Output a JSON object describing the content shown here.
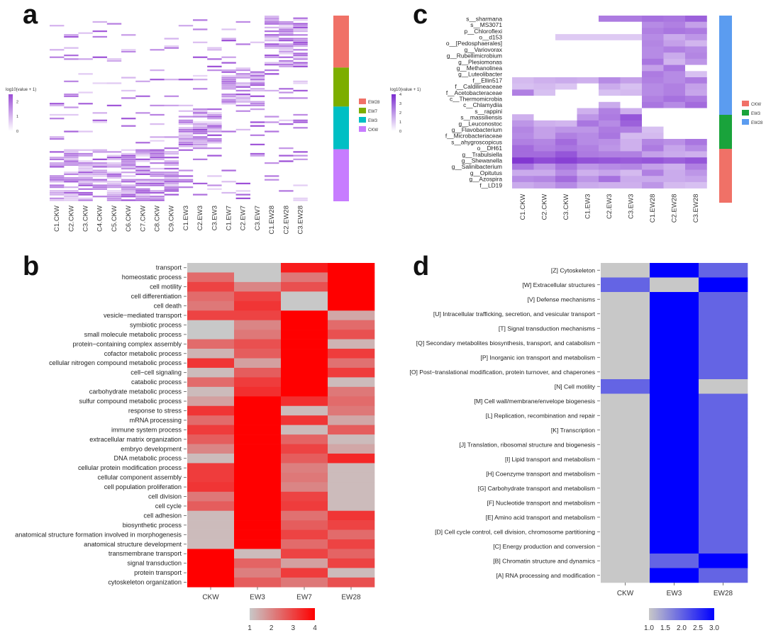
{
  "panels": {
    "a": {
      "label": "a",
      "legend_title": "log10(value + 1)",
      "legend_ticks": [
        "2",
        "1",
        "0"
      ],
      "group_legend": [
        "EW28",
        "EW7",
        "EW3",
        "CKW"
      ],
      "group_colors": {
        "EW28": "#f07167",
        "EW7": "#7cae00",
        "EW3": "#00bfc4",
        "CKW": "#c77cff"
      },
      "columns": [
        "C1.CKW",
        "C2.CKW",
        "C3.CKW",
        "C4.CKW",
        "C5.CKW",
        "C6.CKW",
        "C7.CKW",
        "C8.CKW",
        "C9.CKW",
        "C1.EW3",
        "C2.EW3",
        "C3.EW3",
        "C1.EW7",
        "C2.EW7",
        "C3.EW7",
        "C1.EW28",
        "C2.EW28",
        "C3.EW28"
      ]
    },
    "b": {
      "label": "b",
      "columns": [
        "CKW",
        "EW3",
        "EW7",
        "EW28"
      ],
      "legend_ticks": [
        "1",
        "2",
        "3",
        "4"
      ],
      "rows": [
        "transport",
        "homeostatic process",
        "cell motility",
        "cell differentiation",
        "cell death",
        "vesicle−mediated transport",
        "symbiotic process",
        "small molecule metabolic process",
        "protein−containing complex assembly",
        "cofactor metabolic process",
        "cellular nitrogen compound metabolic process",
        "cell−cell signaling",
        "catabolic process",
        "carbohydrate metabolic process",
        "sulfur compound metabolic process",
        "response to stress",
        "mRNA processing",
        "immune system process",
        "extracellular matrix organization",
        "embryo development",
        "DNA metabolic process",
        "cellular protein modification process",
        "cellular component assembly",
        "cell population proliferation",
        "cell division",
        "cell cycle",
        "cell adhesion",
        "biosynthetic process",
        "anatomical structure formation involved in morphogenesis",
        "anatomical structure development",
        "transmembrane transport",
        "signal transduction",
        "protein transport",
        "cytoskeleton organization"
      ]
    },
    "c": {
      "label": "c",
      "legend_title": "log10(value + 1)",
      "legend_ticks": [
        "4",
        "3",
        "2",
        "1",
        "0"
      ],
      "group_legend": [
        "CKW",
        "EW3",
        "EW28"
      ],
      "group_colors": {
        "CKW": "#f07167",
        "EW3": "#19a33b",
        "EW28": "#5b9cf0"
      },
      "columns": [
        "C1.CKW",
        "C2.CKW",
        "C3.CKW",
        "C1.EW3",
        "C2.EW3",
        "C3.EW3",
        "C1.EW28",
        "C2.EW28",
        "C3.EW28"
      ],
      "rows": [
        "s__sharmana",
        "s__MS3071",
        "p__Chloroflexi",
        "o__d153",
        "o__[Pedosphaerales]",
        "g__Variovorax",
        "g__Rubellimicrobium",
        "g__Plesiomonas",
        "g__Methanolinea",
        "g__Luteolibacter",
        "f__Ellin517",
        "f__Caldilineaceae",
        "f__Acetobacteraceae",
        "c__Thermomicrobia",
        "c__Chlamydiia",
        "s__rappini",
        "s__massiliensis",
        "g__Leuconostoc",
        "g__Flavobacterium",
        "f__Microbacteriaceae",
        "s__ahygroscopicus",
        "o__DH61",
        "g__Trabulsiella",
        "g__Shewanella",
        "g__Salinibacterium",
        "g__Opitutus",
        "g__Azospira",
        "f__LD19"
      ]
    },
    "d": {
      "label": "d",
      "columns": [
        "CKW",
        "EW3",
        "EW28"
      ],
      "legend_ticks": [
        "1.0",
        "1.5",
        "2.0",
        "2.5",
        "3.0"
      ],
      "rows": [
        "[Z] Cytoskeleton",
        "[W] Extracellular structures",
        "[V] Defense mechanisms",
        "[U] Intracellular trafficking, secretion, and vesicular transport",
        "[T] Signal transduction mechanisms",
        "[Q] Secondary metabolites biosynthesis, transport, and catabolism",
        "[P] Inorganic ion transport and metabolism",
        "[O] Post−translational modification, protein turnover, and chaperones",
        "[N] Cell motility",
        "[M] Cell wall/membrane/envelope biogenesis",
        "[L] Replication, recombination and repair",
        "[K] Transcription",
        "[J] Translation, ribosomal structure and biogenesis",
        "[I] Lipid transport and metabolism",
        "[H] Coenzyme transport and metabolism",
        "[G] Carbohydrate transport and metabolism",
        "[F] Nucleotide transport and metabolism",
        "[E] Amino acid transport and metabolism",
        "[D] Cell cycle control, cell division, chromosome partitioning",
        "[C] Energy production and conversion",
        "[B] Chromatin structure and dynamics",
        "[A] RNA processing and modification"
      ]
    }
  },
  "chart_data": [
    {
      "type": "heatmap",
      "panel": "a",
      "columns": [
        "C1.CKW",
        "C2.CKW",
        "C3.CKW",
        "C4.CKW",
        "C5.CKW",
        "C6.CKW",
        "C7.CKW",
        "C8.CKW",
        "C9.CKW",
        "C1.EW3",
        "C2.EW3",
        "C3.EW3",
        "C1.EW7",
        "C2.EW7",
        "C3.EW7",
        "C1.EW28",
        "C2.EW28",
        "C3.EW28"
      ],
      "row_groups": [
        {
          "group": "EW28",
          "row_count": 28,
          "present_in": [
            "C1.EW28",
            "C2.EW28",
            "C3.EW28"
          ]
        },
        {
          "group": "EW7",
          "row_count": 21,
          "present_in": [
            "C1.EW7",
            "C2.EW7",
            "C3.EW7"
          ]
        },
        {
          "group": "EW3",
          "row_count": 23,
          "present_in": [
            "C1.EW3",
            "C2.EW3",
            "C3.EW3"
          ]
        },
        {
          "group": "CKW",
          "row_count": 28,
          "present_in": [
            "C1.CKW",
            "C2.CKW",
            "C3.CKW",
            "C4.CKW",
            "C5.CKW",
            "C6.CKW",
            "C7.CKW",
            "C8.CKW",
            "C9.CKW"
          ]
        }
      ],
      "color_scale": {
        "low": "#ffffff",
        "high": "#9b4dd6",
        "range": [
          0,
          2.5
        ]
      },
      "note_values": "sparse presence pattern; values approximate"
    },
    {
      "type": "heatmap",
      "panel": "b",
      "columns": [
        "CKW",
        "EW3",
        "EW7",
        "EW28"
      ],
      "rows": [
        "transport",
        "homeostatic process",
        "cell motility",
        "cell differentiation",
        "cell death",
        "vesicle−mediated transport",
        "symbiotic process",
        "small molecule metabolic process",
        "protein−containing complex assembly",
        "cofactor metabolic process",
        "cellular nitrogen compound metabolic process",
        "cell−cell signaling",
        "catabolic process",
        "carbohydrate metabolic process",
        "sulfur compound metabolic process",
        "response to stress",
        "mRNA processing",
        "immune system process",
        "extracellular matrix organization",
        "embryo development",
        "DNA metabolic process",
        "cellular protein modification process",
        "cellular component assembly",
        "cell population proliferation",
        "cell division",
        "cell cycle",
        "cell adhesion",
        "biosynthetic process",
        "anatomical structure formation involved in morphogenesis",
        "anatomical structure development",
        "transmembrane transport",
        "signal transduction",
        "protein transport",
        "cytoskeleton organization"
      ],
      "values": [
        [
          1,
          1,
          3.6,
          4
        ],
        [
          2.4,
          1,
          2.2,
          4
        ],
        [
          3,
          2,
          2.8,
          4
        ],
        [
          2.4,
          3,
          1,
          4
        ],
        [
          2.2,
          3.2,
          1,
          4
        ],
        [
          3,
          3,
          4,
          1.5
        ],
        [
          1,
          2,
          4,
          2.4
        ],
        [
          1,
          2.2,
          4,
          2.8
        ],
        [
          2.4,
          2.8,
          4,
          1.3
        ],
        [
          1.3,
          2.6,
          4,
          3.1
        ],
        [
          3.2,
          1.6,
          4,
          2.3
        ],
        [
          1.2,
          2.6,
          4,
          3.1
        ],
        [
          2.4,
          3.1,
          4,
          1.2
        ],
        [
          1.2,
          3.3,
          4,
          2.2
        ],
        [
          1.6,
          4,
          3.3,
          2.4
        ],
        [
          3.2,
          4,
          1.2,
          2.2
        ],
        [
          2.4,
          4,
          3.2,
          1.5
        ],
        [
          3.1,
          4,
          1.2,
          2.6
        ],
        [
          2.6,
          4,
          2.5,
          1.2
        ],
        [
          2,
          4,
          3,
          1.5
        ],
        [
          1.2,
          4,
          2.6,
          3.4
        ],
        [
          3.1,
          4,
          2.1,
          1.2
        ],
        [
          3.1,
          4,
          2.2,
          1.2
        ],
        [
          3.2,
          4,
          2,
          1.2
        ],
        [
          2.2,
          4,
          3,
          1.2
        ],
        [
          2.6,
          4,
          3.1,
          1.2
        ],
        [
          1.2,
          4,
          2.3,
          3.2
        ],
        [
          1.2,
          4,
          2.6,
          3
        ],
        [
          1.2,
          4,
          3,
          2.4
        ],
        [
          1.2,
          4,
          2.4,
          3
        ],
        [
          4,
          1.2,
          3,
          2.5
        ],
        [
          4,
          2.5,
          1.6,
          3
        ],
        [
          4,
          2.1,
          3.1,
          1.2
        ],
        [
          4,
          2.6,
          2.2,
          2.8
        ]
      ],
      "color_scale": {
        "low": "#c8c8c8",
        "high": "#ff0000",
        "range": [
          1,
          4
        ]
      }
    },
    {
      "type": "heatmap",
      "panel": "c",
      "columns": [
        "C1.CKW",
        "C2.CKW",
        "C3.CKW",
        "C1.EW3",
        "C2.EW3",
        "C3.EW3",
        "C1.EW28",
        "C2.EW28",
        "C3.EW28"
      ],
      "rows": [
        "s__sharmana",
        "s__MS3071",
        "p__Chloroflexi",
        "o__d153",
        "o__[Pedosphaerales]",
        "g__Variovorax",
        "g__Rubellimicrobium",
        "g__Plesiomonas",
        "g__Methanolinea",
        "g__Luteolibacter",
        "f__Ellin517",
        "f__Caldilineaceae",
        "f__Acetobacteraceae",
        "c__Thermomicrobia",
        "c__Chlamydiia",
        "s__rappini",
        "s__massiliensis",
        "g__Leuconostoc",
        "g__Flavobacterium",
        "f__Microbacteriaceae",
        "s__ahygroscopicus",
        "o__DH61",
        "g__Trabulsiella",
        "g__Shewanella",
        "g__Salinibacterium",
        "g__Opitutus",
        "g__Azospira",
        "f__LD19"
      ],
      "values": [
        [
          0,
          0,
          0,
          0,
          2.5,
          2.5,
          2.7,
          2.6,
          3
        ],
        [
          0,
          0,
          0,
          0,
          0,
          0,
          2.2,
          2.4,
          1.8
        ],
        [
          0,
          0,
          0,
          0,
          0,
          0,
          2.4,
          2.6,
          2.5
        ],
        [
          0,
          0,
          1,
          1,
          1,
          1,
          2.2,
          1.6,
          2
        ],
        [
          0,
          0,
          0,
          0,
          0,
          0,
          2.3,
          1.8,
          1.4
        ],
        [
          0,
          0,
          0,
          0,
          0,
          0,
          2.2,
          2.4,
          2.2
        ],
        [
          0,
          0,
          0,
          0,
          0,
          0,
          2.2,
          1.6,
          2.3
        ],
        [
          0,
          0,
          0,
          0,
          0,
          0,
          2.6,
          1.4,
          2
        ],
        [
          0,
          0,
          0,
          0,
          0,
          0,
          1.8,
          2.6,
          0
        ],
        [
          0,
          0,
          0,
          0,
          0,
          0,
          2.5,
          2.2,
          1.2
        ],
        [
          1.3,
          1.5,
          1.6,
          1.5,
          2.2,
          1.8,
          2.4,
          2.2,
          2.5
        ],
        [
          1.2,
          1.3,
          1.1,
          0,
          1.6,
          1.2,
          2.2,
          2.4,
          1.8
        ],
        [
          2.4,
          1.2,
          0,
          0,
          1.2,
          1.3,
          2.2,
          2.4,
          1.7
        ],
        [
          0,
          0,
          0,
          0,
          0,
          0,
          2.4,
          2.7,
          2.5
        ],
        [
          0,
          0,
          0,
          0,
          1.6,
          0,
          2.6,
          2.2,
          2.8
        ],
        [
          0,
          0,
          0,
          1.5,
          2.4,
          1.5,
          0,
          0,
          0
        ],
        [
          1.5,
          0,
          0,
          2,
          2.5,
          3.2,
          0,
          0,
          0
        ],
        [
          2,
          1.5,
          1.4,
          2.6,
          2.2,
          3,
          0,
          0,
          0
        ],
        [
          2.3,
          1.8,
          2,
          2,
          2.5,
          2.4,
          1.2,
          0,
          0
        ],
        [
          2.2,
          1.8,
          2.4,
          2.2,
          2.6,
          1.3,
          1.3,
          0,
          0
        ],
        [
          2.4,
          2.3,
          2.8,
          2.2,
          2.1,
          1.5,
          2.3,
          2.1,
          2.6
        ],
        [
          2.8,
          2.4,
          2.6,
          2.4,
          2,
          1.5,
          2.5,
          1.7,
          2.2
        ],
        [
          2.8,
          2.8,
          3.2,
          2.5,
          2.4,
          2.4,
          1.8,
          1.6,
          1.5
        ],
        [
          3.8,
          3.4,
          3.6,
          3.3,
          3.2,
          3.1,
          3.2,
          3,
          3.2
        ],
        [
          2.6,
          2,
          2.6,
          2,
          2.2,
          2.3,
          1.8,
          1.5,
          2.4
        ],
        [
          1.6,
          1.6,
          2.2,
          1.5,
          1.7,
          1.3,
          2.4,
          1.6,
          2
        ],
        [
          2.2,
          2.3,
          2.8,
          2,
          2.7,
          1.6,
          1.6,
          1.6,
          1.7
        ],
        [
          1.6,
          1.8,
          2.2,
          1.6,
          1.5,
          1.5,
          2,
          1.3,
          1.2
        ]
      ],
      "color_scale": {
        "low": "#ffffff",
        "high": "#7b2ccf",
        "range": [
          0,
          4
        ]
      }
    },
    {
      "type": "heatmap",
      "panel": "d",
      "columns": [
        "CKW",
        "EW3",
        "EW28"
      ],
      "rows": [
        "[Z] Cytoskeleton",
        "[W] Extracellular structures",
        "[V] Defense mechanisms",
        "[U] Intracellular trafficking, secretion, and vesicular transport",
        "[T] Signal transduction mechanisms",
        "[Q] Secondary metabolites biosynthesis, transport, and catabolism",
        "[P] Inorganic ion transport and metabolism",
        "[O] Post−translational modification, protein turnover, and chaperones",
        "[N] Cell motility",
        "[M] Cell wall/membrane/envelope biogenesis",
        "[L] Replication, recombination and repair",
        "[K] Transcription",
        "[J] Translation, ribosomal structure and biogenesis",
        "[I] Lipid transport and metabolism",
        "[H] Coenzyme transport and metabolism",
        "[G] Carbohydrate transport and metabolism",
        "[F] Nucleotide transport and metabolism",
        "[E] Amino acid transport and metabolism",
        "[D] Cell cycle control, cell division, chromosome partitioning",
        "[C] Energy production and conversion",
        "[B] Chromatin structure and dynamics",
        "[A] RNA processing and modification"
      ],
      "values": [
        [
          1,
          3,
          2
        ],
        [
          2,
          1,
          3
        ],
        [
          1,
          3,
          2
        ],
        [
          1,
          3,
          2
        ],
        [
          1,
          3,
          2
        ],
        [
          1,
          3,
          2
        ],
        [
          1,
          3,
          2
        ],
        [
          1,
          3,
          2
        ],
        [
          2,
          3,
          1
        ],
        [
          1,
          3,
          2
        ],
        [
          1,
          3,
          2
        ],
        [
          1,
          3,
          2
        ],
        [
          1,
          3,
          2
        ],
        [
          1,
          3,
          2
        ],
        [
          1,
          3,
          2
        ],
        [
          1,
          3,
          2
        ],
        [
          1,
          3,
          2
        ],
        [
          1,
          3,
          2
        ],
        [
          1,
          3,
          2
        ],
        [
          1,
          3,
          2
        ],
        [
          1,
          2,
          3
        ],
        [
          1,
          3,
          2
        ]
      ],
      "color_scale": {
        "low": "#c8c8c8",
        "high": "#0000ff",
        "range": [
          1,
          3
        ]
      }
    }
  ]
}
